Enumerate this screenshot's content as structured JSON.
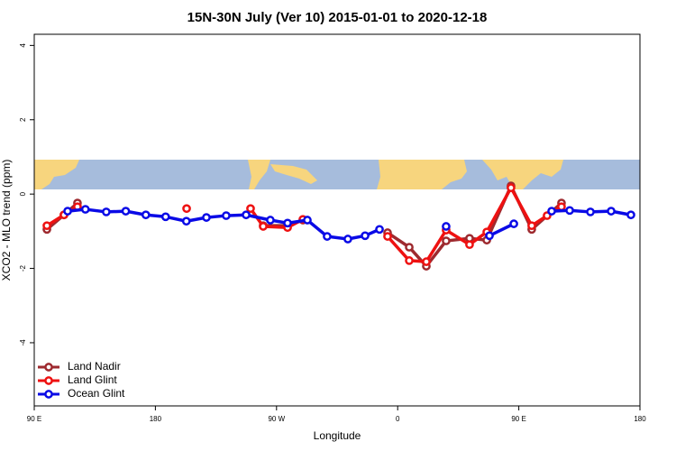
{
  "chart_data": {
    "type": "line",
    "title": "15N-30N July (Ver 10)   2015-01-01 to 2020-12-18",
    "x_label": "Longitude",
    "y_label": "XCO2 - MLO trend (ppm)",
    "xlim": [
      90,
      540
    ],
    "xticks": [
      {
        "value": 90,
        "label": "90 E"
      },
      180,
      {
        "value": 270,
        "label": "90 W"
      },
      {
        "value": 360,
        "label": "0"
      },
      {
        "value": 450,
        "label": "90 E"
      },
      {
        "value": 540,
        "label": "180"
      }
    ],
    "ylim": [
      -5.7,
      4.3
    ],
    "yticks": [
      -4,
      -2,
      0,
      2,
      4
    ],
    "legend": "bottom-left",
    "series": [
      {
        "name": "Land Nadir",
        "color": "#9e2a2f",
        "x": [
          99.4,
          112.1,
          122.1,
          200,
          260.1,
          278.2,
          289.6,
          320,
          352.5,
          368.6,
          381.3,
          396,
          413.4,
          426.2,
          444.2,
          459.6,
          481.7
        ],
        "values": [
          -0.95,
          -0.56,
          -0.24,
          null,
          -0.85,
          -0.85,
          -0.7,
          null,
          -1.04,
          -1.43,
          -1.94,
          -1.26,
          -1.19,
          -1.24,
          0.22,
          -0.95,
          -0.24
        ]
      },
      {
        "name": "Land Glint",
        "color": "#ee1111",
        "x": [
          99.4,
          112.1,
          122.1,
          160,
          203.2,
          230,
          250.7,
          260.1,
          278.2,
          289.6,
          320,
          352.5,
          368.6,
          381.3,
          396,
          413.4,
          426.2,
          444.2,
          459.6,
          471,
          481.7
        ],
        "values": [
          -0.85,
          -0.56,
          -0.34,
          null,
          -0.39,
          null,
          -0.39,
          -0.87,
          -0.9,
          -0.68,
          null,
          -1.14,
          -1.79,
          -1.82,
          -0.97,
          -1.36,
          -1.02,
          0.17,
          -0.85,
          -0.58,
          -0.34
        ]
      },
      {
        "name": "Ocean Glint",
        "color": "#0a0ae6",
        "x": [
          114.8,
          128,
          143.5,
          158,
          172.9,
          187.6,
          203,
          217.9,
          232.6,
          247.4,
          265.4,
          278.2,
          292.9,
          307.6,
          323,
          335.8,
          346.5,
          370,
          396,
          410,
          428.2,
          446.3,
          460,
          474.4,
          487.8,
          503.2,
          518.6,
          533.3
        ],
        "values": [
          -0.46,
          -0.41,
          -0.48,
          -0.46,
          -0.56,
          -0.61,
          -0.73,
          -0.63,
          -0.58,
          -0.56,
          -0.7,
          -0.78,
          -0.7,
          -1.14,
          -1.21,
          -1.12,
          -0.95,
          null,
          -0.87,
          null,
          -1.12,
          -0.8,
          null,
          -0.46,
          -0.44,
          -0.48,
          -0.46,
          -0.56
        ]
      }
    ]
  }
}
